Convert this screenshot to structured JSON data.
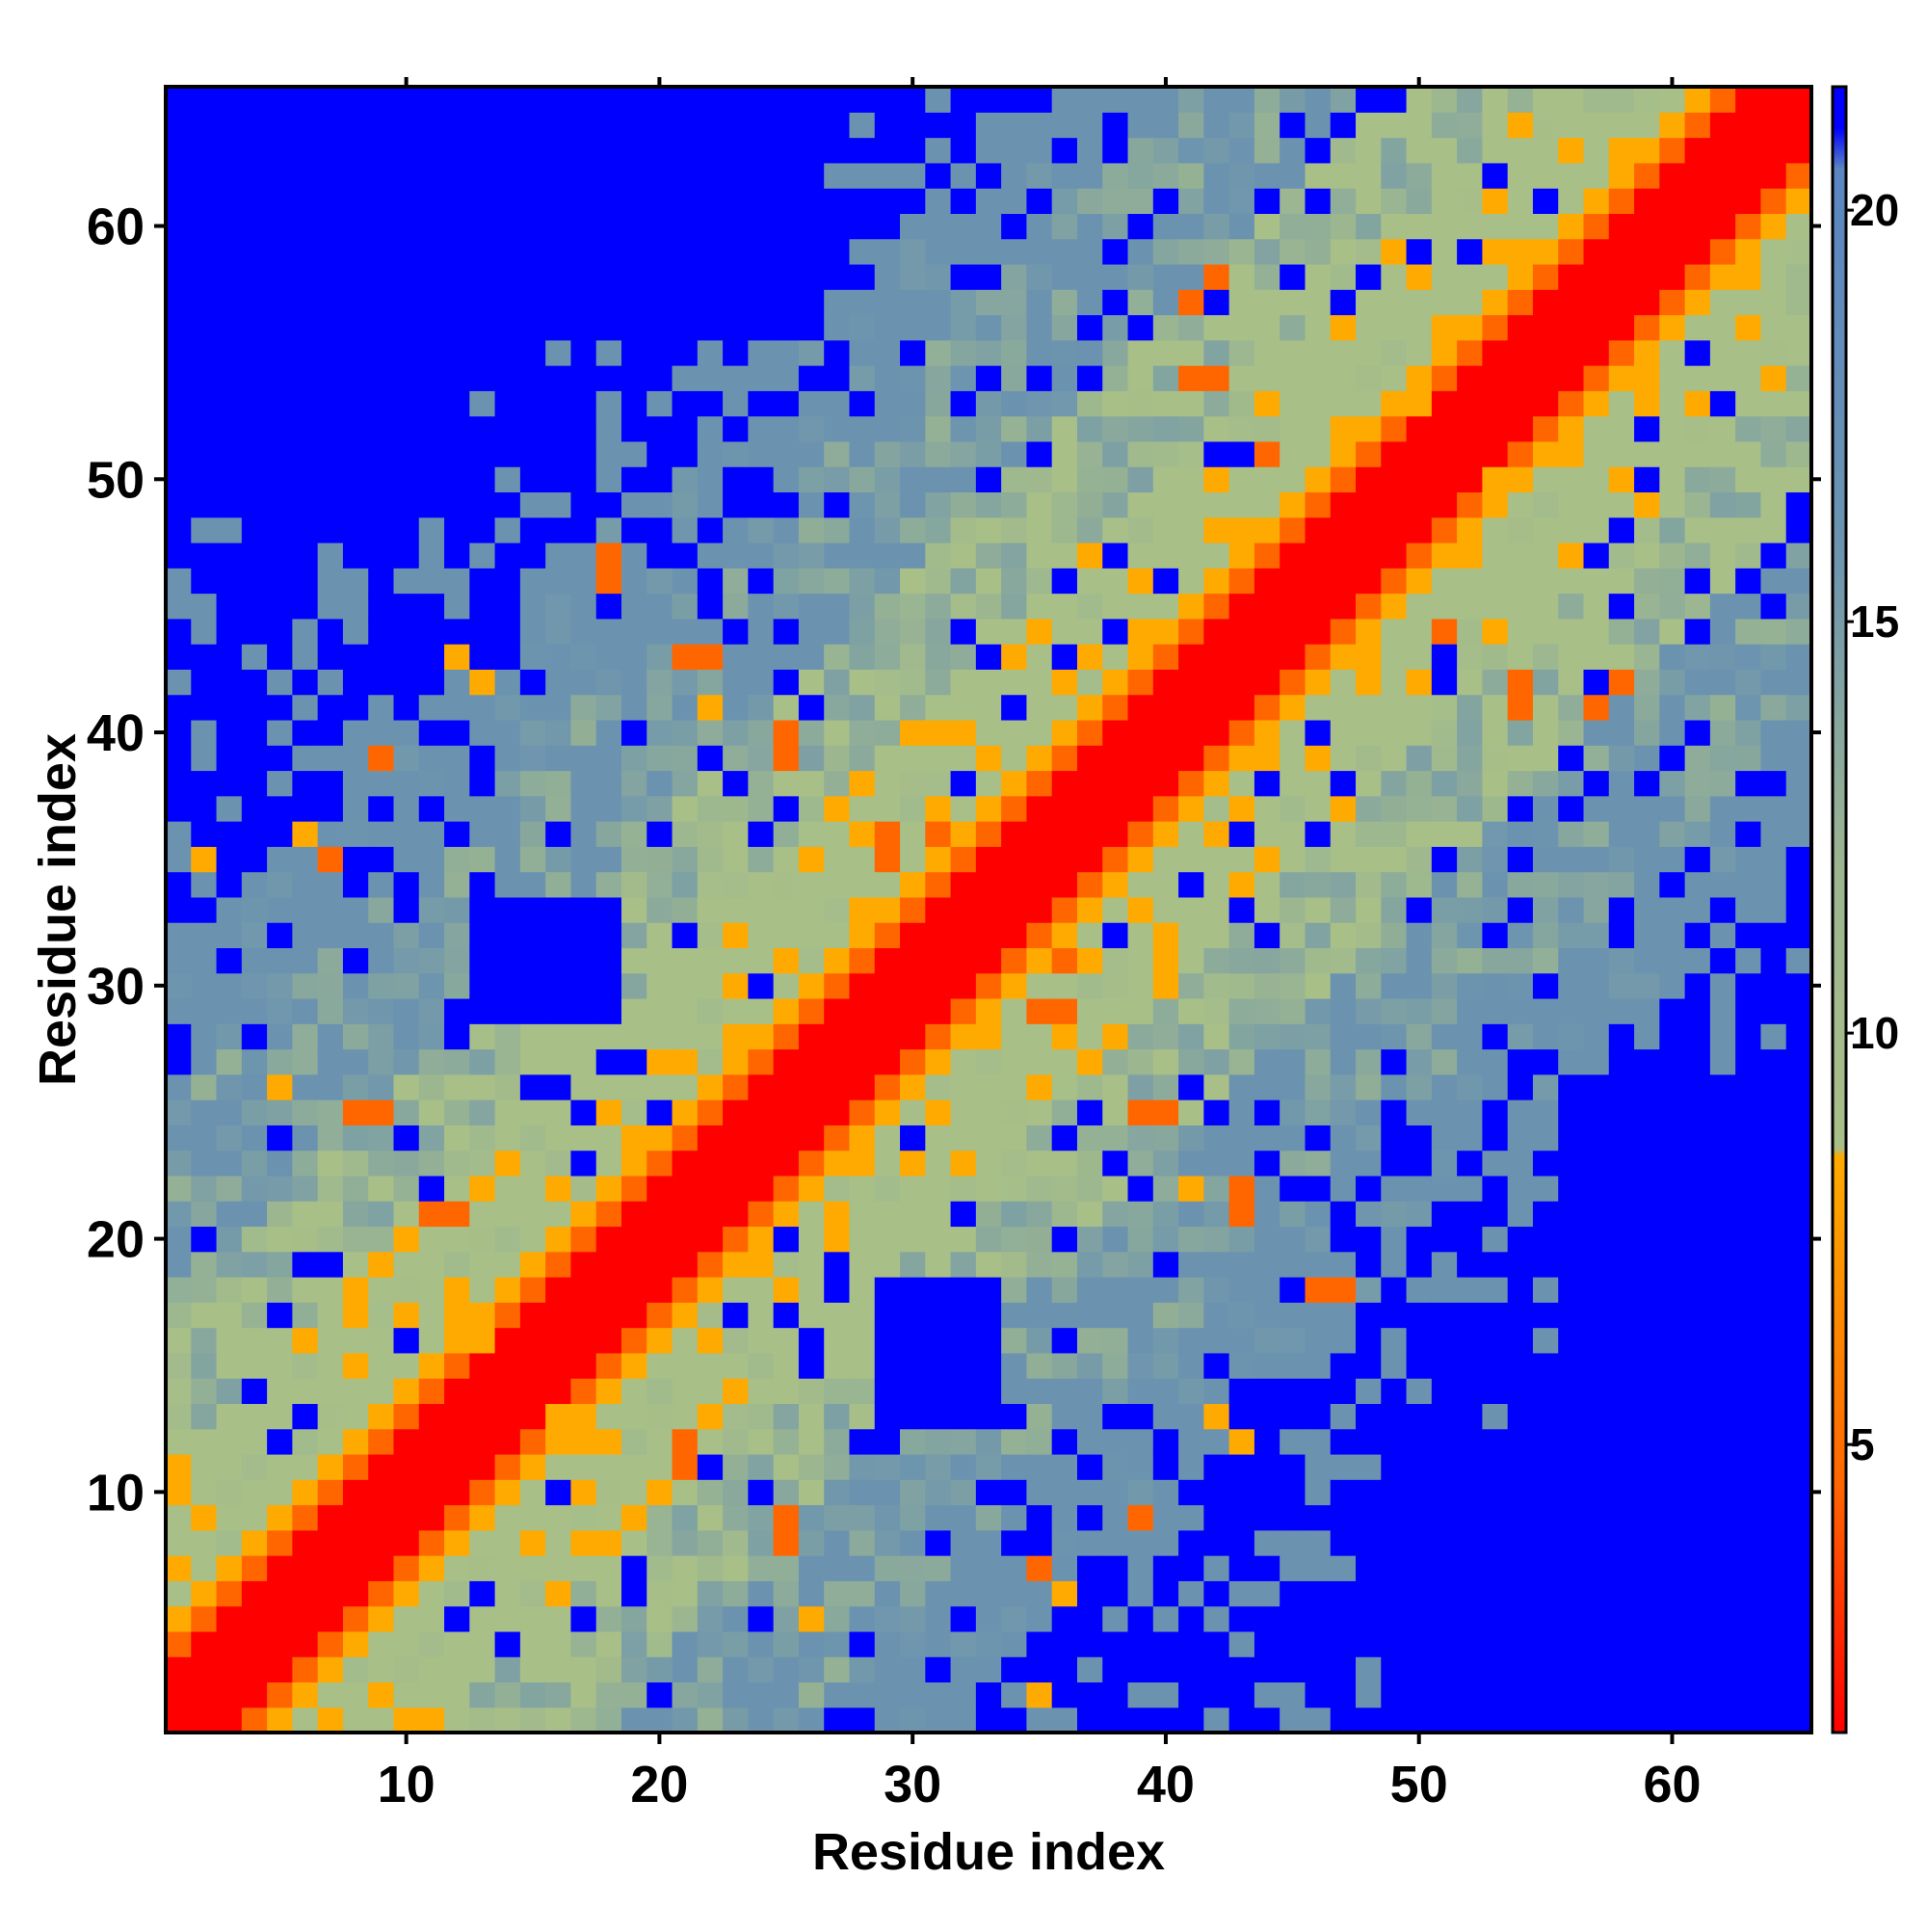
{
  "chart_data": {
    "type": "heatmap",
    "title": "",
    "xlabel": "Residue index",
    "ylabel": "Residue index",
    "n_residues": 65,
    "xlim": [
      0.5,
      65.5
    ],
    "ylim": [
      0.5,
      65.5
    ],
    "x_ticks": [
      10,
      20,
      30,
      40,
      50,
      60
    ],
    "y_ticks": [
      10,
      20,
      30,
      40,
      50,
      60
    ],
    "x_tick_labels": [
      "10",
      "20",
      "30",
      "40",
      "50",
      "60"
    ],
    "y_tick_labels": [
      "10",
      "20",
      "30",
      "40",
      "50",
      "60"
    ],
    "symmetric": true,
    "colorbar": {
      "range": [
        1.5,
        21.5
      ],
      "ticks": [
        5,
        10,
        15,
        20
      ],
      "tick_labels": [
        "5",
        "10",
        "15",
        "20"
      ],
      "stops": [
        {
          "value": 1.5,
          "color": "#ff0000"
        },
        {
          "value": 4.5,
          "color": "#ff6600"
        },
        {
          "value": 8.5,
          "color": "#ffaa00"
        },
        {
          "value": 8.6,
          "color": "#a8bf88"
        },
        {
          "value": 12.0,
          "color": "#9cb590"
        },
        {
          "value": 16.0,
          "color": "#6b93b0"
        },
        {
          "value": 20.5,
          "color": "#5a86c2"
        },
        {
          "value": 21.0,
          "color": "#0000ff"
        }
      ]
    },
    "colors": {
      "contact": "#ff0000",
      "near": "#ff6600",
      "mid": "#ffaa00",
      "green": "#a8bf88",
      "steel": "#6b93b0",
      "far": "#0000ff"
    },
    "distance_by_separation": [
      {
        "max_separation": 0,
        "value": 1.5
      },
      {
        "max_separation": 2,
        "value": 2.5
      },
      {
        "max_separation": 3,
        "value": 4.8
      },
      {
        "max_separation": 4,
        "value": 7.2
      },
      {
        "max_separation": 10,
        "value": 10.5
      },
      {
        "max_separation": 16,
        "value": 13.5
      },
      {
        "max_separation": 24,
        "value": 17.0
      },
      {
        "max_separation": 30,
        "value": 19.5
      },
      {
        "max_separation": 64,
        "value": 22.0
      }
    ],
    "far_regions": [
      {
        "i": [
          49,
          65
        ],
        "j": [
          1,
          12
        ]
      },
      {
        "i": [
          56,
          65
        ],
        "j": [
          12,
          26
        ]
      },
      {
        "i": [
          1,
          4
        ],
        "j": [
          56,
          65
        ]
      },
      {
        "i": [
          29,
          33
        ],
        "j": [
          14,
          18
        ]
      },
      {
        "i": [
          13,
          18
        ],
        "j": [
          29,
          33
        ]
      }
    ],
    "off_diagonal_contacts": [
      {
        "i": 16,
        "j": 13,
        "value": 7.0
      },
      {
        "i": 18,
        "j": 12,
        "value": 7.5
      },
      {
        "i": 21,
        "j": 12,
        "value": 5.0
      },
      {
        "i": 25,
        "j": 8,
        "value": 5.0
      },
      {
        "i": 26,
        "j": 5,
        "value": 7.5
      },
      {
        "i": 35,
        "j": 2,
        "value": 7.5
      },
      {
        "i": 36,
        "j": 6,
        "value": 7.0
      },
      {
        "i": 39,
        "j": 9,
        "value": 5.0
      },
      {
        "i": 39,
        "j": 25,
        "value": 5.0
      },
      {
        "i": 36,
        "j": 29,
        "value": 5.0
      },
      {
        "i": 33,
        "j": 29,
        "value": 7.5
      },
      {
        "i": 31,
        "j": 36,
        "value": 5.0
      },
      {
        "i": 29,
        "j": 35,
        "value": 5.0
      },
      {
        "i": 41,
        "j": 22,
        "value": 7.5
      },
      {
        "i": 43,
        "j": 21,
        "value": 5.0
      },
      {
        "i": 47,
        "j": 18,
        "value": 5.0
      },
      {
        "i": 43,
        "j": 12,
        "value": 7.5
      },
      {
        "i": 25,
        "j": 40,
        "value": 5.0
      },
      {
        "i": 22,
        "j": 43,
        "value": 5.0
      },
      {
        "i": 18,
        "j": 46,
        "value": 5.0
      },
      {
        "i": 13,
        "j": 42,
        "value": 7.5
      },
      {
        "i": 7,
        "j": 35,
        "value": 5.0
      },
      {
        "i": 9,
        "j": 25,
        "value": 5.0
      },
      {
        "i": 11,
        "j": 21,
        "value": 5.0
      },
      {
        "i": 12,
        "j": 17,
        "value": 7.5
      },
      {
        "i": 51,
        "j": 44,
        "value": 5.0
      },
      {
        "i": 54,
        "j": 42,
        "value": 5.0
      },
      {
        "i": 57,
        "j": 41,
        "value": 5.0
      },
      {
        "i": 45,
        "j": 48,
        "value": 5.0
      },
      {
        "i": 41,
        "j": 54,
        "value": 5.0
      },
      {
        "i": 42,
        "j": 58,
        "value": 5.0
      },
      {
        "i": 50,
        "j": 53,
        "value": 7.5
      }
    ]
  }
}
